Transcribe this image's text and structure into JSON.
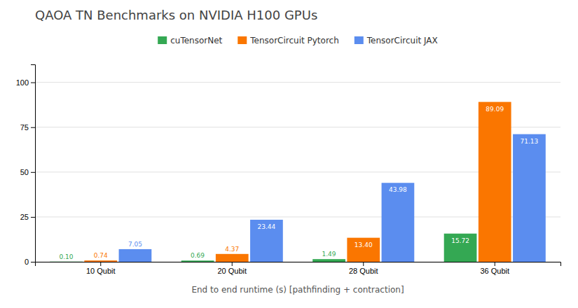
{
  "chart_data": {
    "type": "bar",
    "title": "QAOA TN Benchmarks on NVIDIA H100 GPUs",
    "xlabel": "End to end runtime (s) [pathfinding + contraction]",
    "categories": [
      "10 Qubit",
      "20 Qubit",
      "28 Qubit",
      "36 Qubit"
    ],
    "series": [
      {
        "name": "cuTensorNet",
        "color": "#34a853",
        "values": [
          0.1,
          0.69,
          1.49,
          15.72
        ],
        "value_labels": [
          "0.10",
          "0.69",
          "1.49",
          "15.72"
        ]
      },
      {
        "name": "TensorCircuit Pytorch",
        "color": "#fa7600",
        "values": [
          0.74,
          4.37,
          13.4,
          89.09
        ],
        "value_labels": [
          "0.74",
          "4.37",
          "13.40",
          "89.09"
        ]
      },
      {
        "name": "TensorCircuit JAX",
        "color": "#5b8def",
        "values": [
          7.05,
          23.44,
          43.98,
          71.13
        ],
        "value_labels": [
          "7.05",
          "23.44",
          "43.98",
          "71.13"
        ]
      }
    ],
    "ylim": [
      0,
      110
    ],
    "yticks": [
      0,
      25,
      50,
      75,
      100
    ],
    "grid": true,
    "legend": "top",
    "data_labels": true
  }
}
